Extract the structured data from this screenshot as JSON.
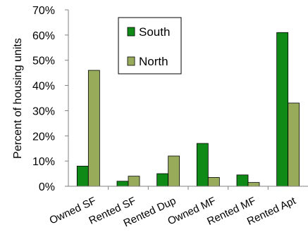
{
  "chart_data": {
    "type": "bar",
    "title": "",
    "xlabel": "",
    "ylabel": "Percent of housing units",
    "categories": [
      "Owned SF",
      "Rented SF",
      "Rented Dup",
      "Owned MF",
      "Rented MF",
      "Rented Apt"
    ],
    "series": [
      {
        "name": "South",
        "color": "#0f8a16",
        "values": [
          8,
          2,
          5,
          17,
          4.5,
          61
        ]
      },
      {
        "name": "North",
        "color": "#97ab5a",
        "values": [
          46,
          4,
          12,
          3.5,
          1.5,
          33
        ]
      }
    ],
    "ylim": [
      0,
      70
    ],
    "yticks": [
      0,
      10,
      20,
      30,
      40,
      50,
      60,
      70
    ],
    "ytick_labels": [
      "0%",
      "10%",
      "20%",
      "30%",
      "40%",
      "50%",
      "60%",
      "70%"
    ],
    "grid": false,
    "legend_position": "top-center",
    "colors": {
      "axis": "#808080",
      "bar_outline": "#000000"
    }
  }
}
